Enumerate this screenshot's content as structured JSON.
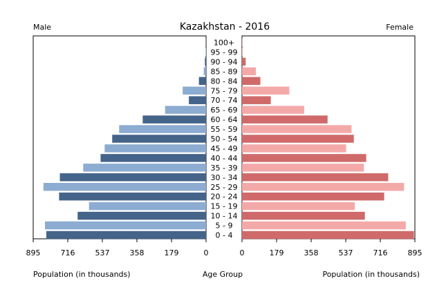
{
  "chart_data": {
    "type": "bar",
    "title": "Kazakhstan - 2016",
    "left_label": "Male",
    "right_label": "Female",
    "center_label": "Age Group",
    "xlabel_left": "Population (in thousands)",
    "xlabel_right": "Population (in thousands)",
    "ticks_left": [
      "895",
      "716",
      "537",
      "358",
      "179",
      "0"
    ],
    "ticks_right": [
      "0",
      "179",
      "358",
      "537",
      "716",
      "895"
    ],
    "xlim": [
      0,
      895
    ],
    "categories": [
      "100+",
      "95 - 99",
      "90 - 94",
      "85 - 89",
      "80 - 84",
      "75 - 79",
      "70 - 74",
      "65 - 69",
      "60 - 64",
      "55 - 59",
      "50 - 54",
      "45 - 49",
      "40 - 44",
      "35 - 39",
      "30 - 34",
      "25 - 29",
      "20 - 24",
      "15 - 19",
      "10 - 14",
      "5 - 9",
      "0 - 4"
    ],
    "series": [
      {
        "name": "Male",
        "values": [
          1,
          2,
          6,
          12,
          37,
          121,
          89,
          212,
          328,
          450,
          486,
          525,
          546,
          636,
          757,
          842,
          761,
          606,
          665,
          834,
          827
        ]
      },
      {
        "name": "Female",
        "values": [
          2,
          3,
          19,
          72,
          95,
          245,
          149,
          322,
          443,
          567,
          579,
          539,
          643,
          631,
          757,
          839,
          736,
          584,
          636,
          848,
          890
        ]
      }
    ],
    "colors": {
      "male_dark": "#44648a",
      "male_light": "#8cacd2",
      "female_dark": "#d06a6a",
      "female_light": "#f4a9a9"
    }
  }
}
